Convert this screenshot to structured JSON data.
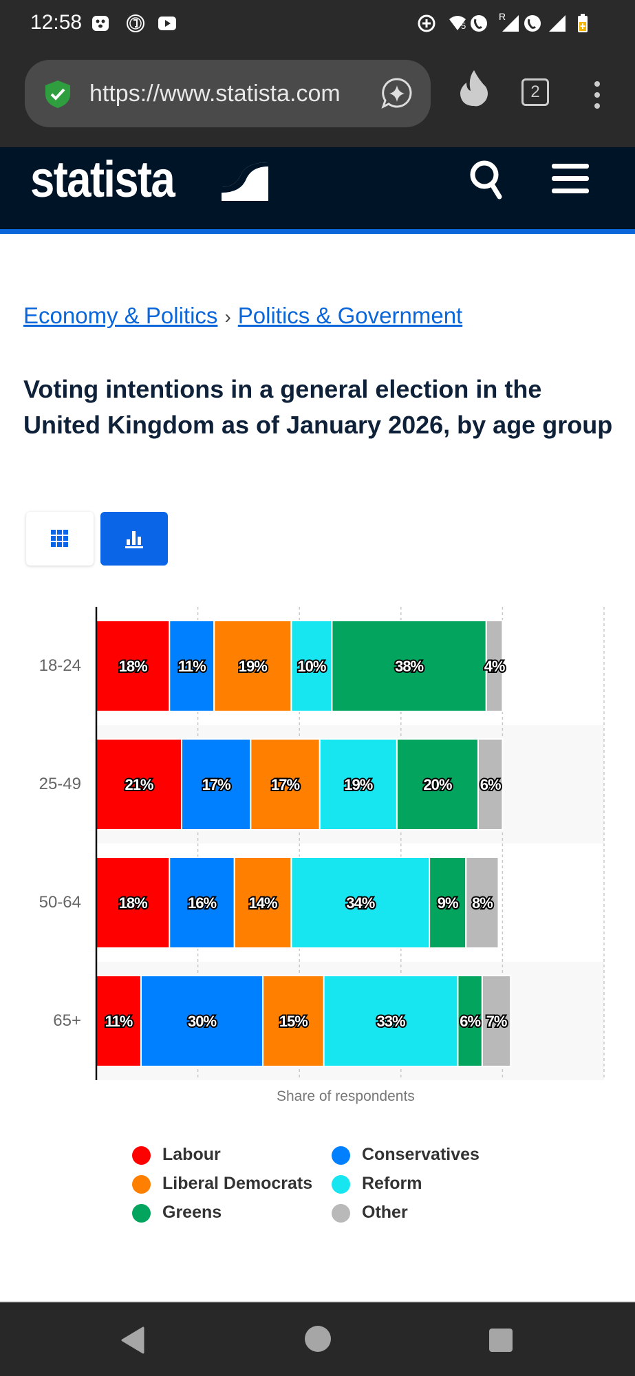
{
  "status_bar": {
    "time": "12:58",
    "left_icons": [
      "face-notification-icon",
      "vpn-user-icon",
      "youtube-icon"
    ],
    "right_icons": [
      "data-saver-icon",
      "wifi-5-icon",
      "wifi-calling-icon",
      "roaming-signal-icon",
      "wifi-calling-icon-2",
      "signal-icon",
      "battery-charging-icon"
    ],
    "wifi_badge": "5",
    "roaming_badge": "R"
  },
  "browser": {
    "url": "https://www.statista.com",
    "tab_count": "2",
    "icons": [
      "shield-check-icon",
      "ai-chat-icon",
      "flame-icon",
      "tabs-icon",
      "more-vert-icon"
    ]
  },
  "site_header": {
    "logo_text": "statista",
    "icons": [
      "search-icon",
      "menu-icon"
    ],
    "colors": {
      "bg": "#001428",
      "accent": "#0a66d9"
    }
  },
  "breadcrumb": {
    "items": [
      "Economy & Politics",
      "Politics & Government"
    ],
    "separator": "›"
  },
  "page_title": "Voting intentions in a general election in the United Kingdom as of January 2026, by age group",
  "view_toggle": {
    "buttons": [
      {
        "name": "table-view",
        "icon": "grid-icon",
        "active": false
      },
      {
        "name": "chart-view",
        "icon": "bar-chart-icon",
        "active": true
      }
    ]
  },
  "chart_data": {
    "type": "bar",
    "orientation": "horizontal",
    "stacked": true,
    "title": "Voting intentions in a general election in the United Kingdom as of January 2026, by age group",
    "categories": [
      "18-24",
      "25-49",
      "50-64",
      "65+"
    ],
    "xlabel": "Share of respondents",
    "ylabel": "",
    "xlim": [
      0,
      125
    ],
    "grid": true,
    "grid_step": 25,
    "legend_position": "bottom",
    "series": [
      {
        "name": "Labour",
        "color": "#ff0000",
        "values": [
          18,
          21,
          18,
          11
        ]
      },
      {
        "name": "Conservatives",
        "color": "#0080ff",
        "values": [
          11,
          17,
          16,
          30
        ]
      },
      {
        "name": "Liberal Democrats",
        "color": "#ff8000",
        "values": [
          19,
          17,
          14,
          15
        ]
      },
      {
        "name": "Reform",
        "color": "#17e6f0",
        "values": [
          10,
          19,
          34,
          33
        ]
      },
      {
        "name": "Greens",
        "color": "#03a45e",
        "values": [
          38,
          20,
          9,
          6
        ]
      },
      {
        "name": "Other",
        "color": "#b9b9b9",
        "values": [
          4,
          6,
          8,
          7
        ]
      }
    ],
    "data_labels": [
      [
        "18%",
        "11%",
        "19%",
        "10%",
        "38%",
        "4%"
      ],
      [
        "21%",
        "17%",
        "17%",
        "19%",
        "20%",
        "6%"
      ],
      [
        "18%",
        "16%",
        "14%",
        "34%",
        "9%",
        "8%"
      ],
      [
        "11%",
        "30%",
        "15%",
        "33%",
        "6%",
        "7%"
      ]
    ]
  },
  "legend": {
    "items": [
      {
        "label": "Labour",
        "color": "#ff0000"
      },
      {
        "label": "Conservatives",
        "color": "#0080ff"
      },
      {
        "label": "Liberal Democrats",
        "color": "#ff8000"
      },
      {
        "label": "Reform",
        "color": "#17e6f0"
      },
      {
        "label": "Greens",
        "color": "#03a45e"
      },
      {
        "label": "Other",
        "color": "#b9b9b9"
      }
    ]
  },
  "nav_bar": {
    "icons": [
      "back-icon",
      "home-icon",
      "recents-icon"
    ]
  }
}
